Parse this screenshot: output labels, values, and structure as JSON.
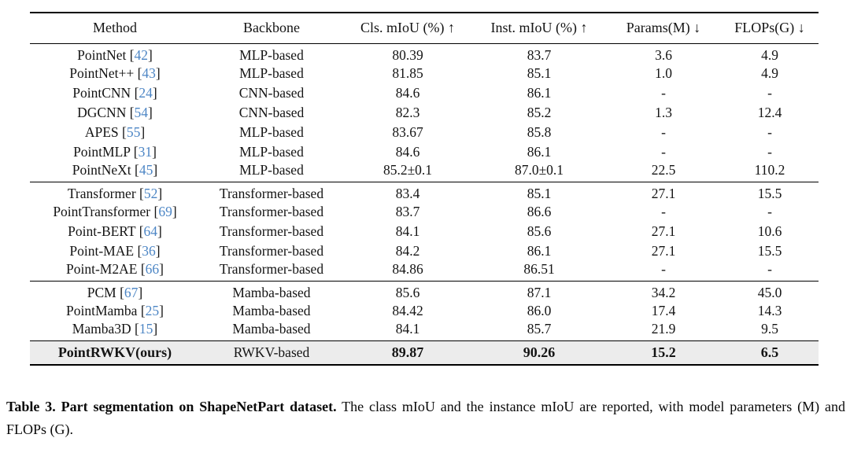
{
  "table": {
    "headers": [
      "Method",
      "Backbone",
      "Cls. mIoU (%) ↑",
      "Inst. mIoU (%) ↑",
      "Params(M) ↓",
      "FLOPs(G) ↓"
    ],
    "groups": [
      {
        "rows": [
          {
            "method": "PointNet",
            "cite": "42",
            "backbone": "MLP-based",
            "cls_miou": "80.39",
            "inst_miou": "83.7",
            "params": "3.6",
            "flops": "4.9"
          },
          {
            "method": "PointNet++",
            "cite": "43",
            "backbone": "MLP-based",
            "cls_miou": "81.85",
            "inst_miou": "85.1",
            "params": "1.0",
            "flops": "4.9"
          },
          {
            "method": "PointCNN",
            "cite": "24",
            "backbone": "CNN-based",
            "cls_miou": "84.6",
            "inst_miou": "86.1",
            "params": "-",
            "flops": "-"
          },
          {
            "method": "DGCNN",
            "cite": "54",
            "backbone": "CNN-based",
            "cls_miou": "82.3",
            "inst_miou": "85.2",
            "params": "1.3",
            "flops": "12.4"
          },
          {
            "method": "APES",
            "cite": "55",
            "backbone": "MLP-based",
            "cls_miou": "83.67",
            "inst_miou": "85.8",
            "params": "-",
            "flops": "-"
          },
          {
            "method": "PointMLP",
            "cite": "31",
            "backbone": "MLP-based",
            "cls_miou": "84.6",
            "inst_miou": "86.1",
            "params": "-",
            "flops": "-"
          },
          {
            "method": "PointNeXt",
            "cite": "45",
            "backbone": "MLP-based",
            "cls_miou": "85.2±0.1",
            "inst_miou": "87.0±0.1",
            "params": "22.5",
            "flops": "110.2"
          }
        ]
      },
      {
        "rows": [
          {
            "method": "Transformer",
            "cite": "52",
            "backbone": "Transformer-based",
            "cls_miou": "83.4",
            "inst_miou": "85.1",
            "params": "27.1",
            "flops": "15.5"
          },
          {
            "method": "PointTransformer",
            "cite": "69",
            "backbone": "Transformer-based",
            "cls_miou": "83.7",
            "inst_miou": "86.6",
            "params": "-",
            "flops": "-"
          },
          {
            "method": "Point-BERT",
            "cite": "64",
            "backbone": "Transformer-based",
            "cls_miou": "84.1",
            "inst_miou": "85.6",
            "params": "27.1",
            "flops": "10.6"
          },
          {
            "method": "Point-MAE",
            "cite": "36",
            "backbone": "Transformer-based",
            "cls_miou": "84.2",
            "inst_miou": "86.1",
            "params": "27.1",
            "flops": "15.5"
          },
          {
            "method": "Point-M2AE",
            "cite": "66",
            "backbone": "Transformer-based",
            "cls_miou": "84.86",
            "inst_miou": "86.51",
            "params": "-",
            "flops": "-"
          }
        ]
      },
      {
        "rows": [
          {
            "method": "PCM",
            "cite": "67",
            "backbone": "Mamba-based",
            "cls_miou": "85.6",
            "inst_miou": "87.1",
            "params": "34.2",
            "flops": "45.0"
          },
          {
            "method": "PointMamba",
            "cite": "25",
            "backbone": "Mamba-based",
            "cls_miou": "84.42",
            "inst_miou": "86.0",
            "params": "17.4",
            "flops": "14.3"
          },
          {
            "method": "Mamba3D",
            "cite": "15",
            "backbone": "Mamba-based",
            "cls_miou": "84.1",
            "inst_miou": "85.7",
            "params": "21.9",
            "flops": "9.5"
          }
        ]
      }
    ],
    "highlight_row": {
      "method": "PointRWKV(ours)",
      "cite": null,
      "backbone": "RWKV-based",
      "cls_miou": "89.87",
      "inst_miou": "90.26",
      "params": "15.2",
      "flops": "6.5"
    }
  },
  "caption": {
    "bold": "Table 3. Part segmentation on ShapeNetPart dataset.",
    "rest": " The class mIoU and the instance mIoU are reported, with model parameters (M) and FLOPs (G)."
  },
  "colors": {
    "citation": "#4d86c5",
    "highlight_bg": "#ececec",
    "rule": "#000000"
  }
}
